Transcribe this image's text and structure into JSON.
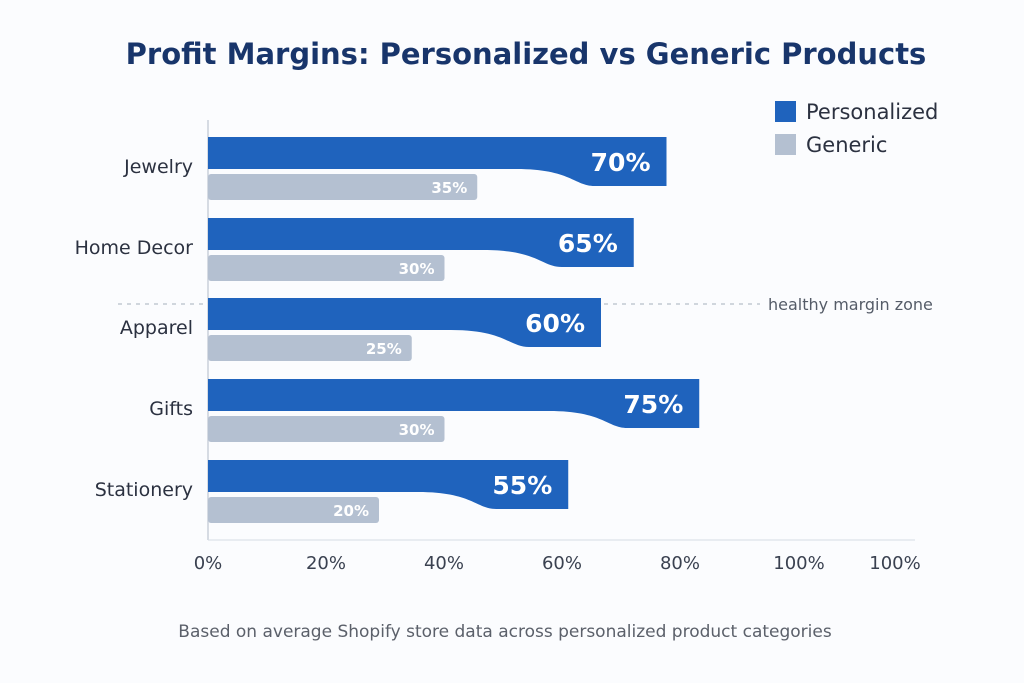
{
  "chart_data": {
    "type": "bar",
    "orientation": "horizontal",
    "title": "Profit Margins: Personalized vs Generic Products",
    "categories": [
      "Jewelry",
      "Home Decor",
      "Apparel",
      "Gifts",
      "Stationery"
    ],
    "series": [
      {
        "name": "Personalized",
        "color": "#1f63bd",
        "values": [
          70,
          65,
          60,
          75,
          55
        ],
        "labels": [
          "70%",
          "65%",
          "60%",
          "75%",
          "55%"
        ]
      },
      {
        "name": "Generic",
        "color": "#b4c0d1",
        "values": [
          35,
          30,
          25,
          30,
          20
        ],
        "labels": [
          "35%",
          "30%",
          "25%",
          "30%",
          "20%"
        ]
      }
    ],
    "x_ticks": [
      "0%",
      "20%",
      "40%",
      "60%",
      "80%",
      "100%",
      "100%"
    ],
    "xlim": [
      0,
      100
    ],
    "legend_position": "top-right",
    "annotation": {
      "label": "healthy margin zone",
      "between": [
        "Home Decor",
        "Apparel"
      ]
    },
    "footnote": "Based on average Shopify store data across personalized product categories"
  }
}
